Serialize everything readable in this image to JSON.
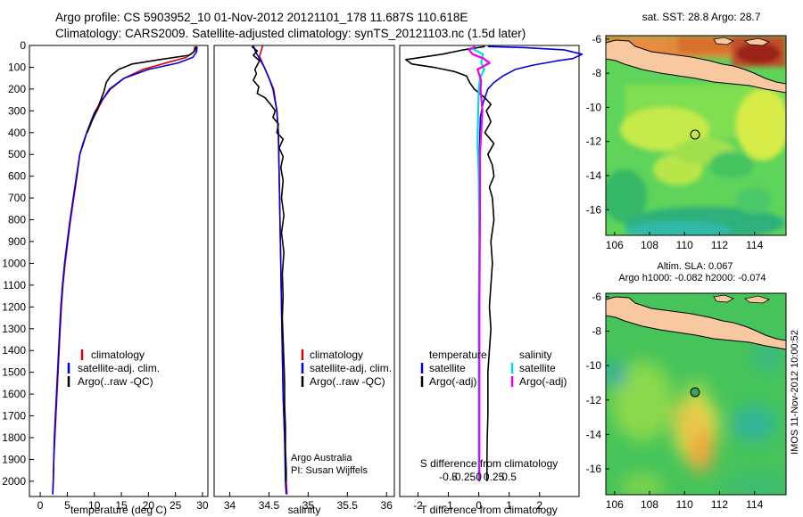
{
  "header": {
    "line1": "Argo profile: CS 5903952_10 01-Nov-2012 20121101_178 11.687S 110.618E",
    "line2": "Climatology: CARS2009. Satellite-adjusted climatology: synTS_20121103.nc (1.5d later)"
  },
  "colors": {
    "climatology": "#dd0000",
    "satellite": "#0000dd",
    "argo": "#000000",
    "salinity_sat": "#00dddd",
    "salinity_argo": "#ee00ee"
  },
  "chart_data": [
    {
      "type": "line",
      "panel": "temperature",
      "xlabel": "temperature (deg C)",
      "ylabel": "",
      "xlim": [
        -2,
        31
      ],
      "ylim": [
        2070,
        0
      ],
      "x_ticks": [
        0,
        5,
        10,
        15,
        20,
        25,
        30
      ],
      "y_ticks": [
        0,
        100,
        200,
        300,
        400,
        500,
        600,
        700,
        800,
        900,
        1000,
        1100,
        1200,
        1300,
        1400,
        1500,
        1600,
        1700,
        1800,
        1900,
        2000
      ],
      "legend": [
        "climatology",
        "satellite-adj. clim.",
        "Argo(..raw -QC)"
      ],
      "legend_position": "bottom-right",
      "series": [
        {
          "name": "climatology",
          "color": "#dd0000",
          "points": [
            [
              28.6,
              5
            ],
            [
              28.4,
              30
            ],
            [
              27,
              55
            ],
            [
              24,
              75
            ],
            [
              19,
              110
            ],
            [
              15.5,
              150
            ],
            [
              13,
              200
            ],
            [
              11.5,
              250
            ],
            [
              10.5,
              300
            ],
            [
              9.4,
              350
            ],
            [
              8.6,
              400
            ],
            [
              8,
              450
            ],
            [
              7.3,
              500
            ],
            [
              6.8,
              600
            ],
            [
              6.2,
              700
            ],
            [
              5.6,
              800
            ],
            [
              5.1,
              900
            ],
            [
              4.6,
              1000
            ],
            [
              4.2,
              1100
            ],
            [
              3.9,
              1200
            ],
            [
              3.7,
              1300
            ],
            [
              3.5,
              1400
            ],
            [
              3.3,
              1500
            ],
            [
              3.1,
              1600
            ],
            [
              2.9,
              1700
            ],
            [
              2.7,
              1800
            ],
            [
              2.5,
              1900
            ],
            [
              2.4,
              2000
            ],
            [
              2.3,
              2060
            ]
          ]
        },
        {
          "name": "satellite-adj. clim.",
          "color": "#0000dd",
          "points": [
            [
              29,
              5
            ],
            [
              28.9,
              30
            ],
            [
              28.2,
              55
            ],
            [
              25.5,
              80
            ],
            [
              20,
              110
            ],
            [
              15.5,
              150
            ],
            [
              12.8,
              200
            ],
            [
              11.2,
              260
            ],
            [
              10,
              310
            ],
            [
              9.2,
              360
            ],
            [
              8.6,
              400
            ],
            [
              7.9,
              450
            ],
            [
              7.3,
              500
            ],
            [
              6.7,
              600
            ],
            [
              6.1,
              700
            ],
            [
              5.5,
              800
            ],
            [
              5,
              900
            ],
            [
              4.5,
              1000
            ],
            [
              4.1,
              1100
            ],
            [
              3.8,
              1200
            ],
            [
              3.6,
              1300
            ],
            [
              3.4,
              1400
            ],
            [
              3.2,
              1500
            ],
            [
              3,
              1600
            ],
            [
              2.8,
              1700
            ],
            [
              2.6,
              1800
            ],
            [
              2.5,
              1900
            ],
            [
              2.4,
              2000
            ],
            [
              2.3,
              2060
            ]
          ]
        },
        {
          "name": "Argo(..raw -QC)",
          "color": "#000000",
          "points": [
            [
              28.8,
              5
            ],
            [
              28.6,
              25
            ],
            [
              27.5,
              45
            ],
            [
              22,
              65
            ],
            [
              17,
              85
            ],
            [
              14.5,
              110
            ],
            [
              13,
              140
            ],
            [
              12.2,
              170
            ],
            [
              11.8,
              210
            ],
            [
              11.2,
              250
            ],
            [
              10.4,
              300
            ],
            [
              9.5,
              350
            ],
            [
              8.7,
              400
            ]
          ]
        }
      ]
    },
    {
      "type": "line",
      "panel": "salinity",
      "xlabel": "salinity",
      "ylabel": "",
      "xlim": [
        33.8,
        36.1
      ],
      "ylim": [
        2070,
        0
      ],
      "x_ticks": [
        34,
        34.5,
        35,
        35.5,
        36
      ],
      "legend": [
        "climatology",
        "satellite-adj. clim.",
        "Argo(..raw -QC)"
      ],
      "legend_position": "bottom-right",
      "annotations": [
        "Argo Australia",
        "PI: Susan Wijffels"
      ],
      "series": [
        {
          "name": "climatology",
          "color": "#dd0000",
          "points": [
            [
              34.42,
              0
            ],
            [
              34.38,
              50
            ],
            [
              34.44,
              100
            ],
            [
              34.5,
              150
            ],
            [
              34.56,
              200
            ],
            [
              34.6,
              300
            ],
            [
              34.62,
              400
            ],
            [
              34.63,
              600
            ],
            [
              34.64,
              800
            ],
            [
              34.65,
              1000
            ],
            [
              34.66,
              1200
            ],
            [
              34.67,
              1400
            ],
            [
              34.68,
              1600
            ],
            [
              34.7,
              1800
            ],
            [
              34.72,
              2000
            ],
            [
              34.73,
              2060
            ]
          ]
        },
        {
          "name": "satellite-adj. clim.",
          "color": "#0000dd",
          "points": [
            [
              34.3,
              0
            ],
            [
              34.33,
              30
            ],
            [
              34.38,
              60
            ],
            [
              34.44,
              100
            ],
            [
              34.5,
              150
            ],
            [
              34.55,
              200
            ],
            [
              34.6,
              300
            ],
            [
              34.62,
              400
            ],
            [
              34.63,
              600
            ],
            [
              34.64,
              800
            ],
            [
              34.65,
              1000
            ],
            [
              34.66,
              1200
            ],
            [
              34.67,
              1400
            ],
            [
              34.68,
              1600
            ],
            [
              34.7,
              1800
            ],
            [
              34.71,
              2000
            ],
            [
              34.72,
              2060
            ]
          ]
        },
        {
          "name": "Argo(..raw -QC)",
          "color": "#000000",
          "points": [
            [
              34.28,
              5
            ],
            [
              34.35,
              25
            ],
            [
              34.3,
              45
            ],
            [
              34.38,
              70
            ],
            [
              34.35,
              90
            ],
            [
              34.32,
              110
            ],
            [
              34.34,
              130
            ],
            [
              34.3,
              160
            ],
            [
              34.37,
              190
            ],
            [
              34.35,
              220
            ],
            [
              34.45,
              240
            ],
            [
              34.52,
              270
            ],
            [
              34.58,
              300
            ],
            [
              34.55,
              330
            ],
            [
              34.62,
              360
            ],
            [
              34.6,
              400
            ],
            [
              34.68,
              430
            ],
            [
              34.63,
              470
            ],
            [
              34.68,
              510
            ],
            [
              34.65,
              560
            ],
            [
              34.68,
              620
            ],
            [
              34.66,
              700
            ],
            [
              34.69,
              780
            ],
            [
              34.66,
              860
            ],
            [
              34.69,
              950
            ],
            [
              34.67,
              1050
            ],
            [
              34.68,
              1150
            ],
            [
              34.67,
              1250
            ],
            [
              34.68,
              1350
            ],
            [
              34.69,
              1450
            ],
            [
              34.7,
              1550
            ],
            [
              34.7,
              1650
            ],
            [
              34.71,
              1750
            ],
            [
              34.71,
              1850
            ],
            [
              34.72,
              1950
            ],
            [
              34.72,
              2000
            ]
          ]
        }
      ]
    },
    {
      "type": "line",
      "panel": "difference",
      "xlabel": "T difference from climatology",
      "x2label": "S difference from climatology",
      "ylabel": "",
      "xlim": [
        -2.6,
        3.3
      ],
      "ylim": [
        2070,
        0
      ],
      "x_ticks": [
        -2,
        -1,
        0,
        1,
        2
      ],
      "x2_ticks": [
        -0.5,
        -0.25,
        0,
        0.25,
        0.5
      ],
      "x2_tick_labels": [
        "-0.5",
        "-0.25",
        "0",
        "0.25",
        "0.5"
      ],
      "legend": [
        "temperature",
        "satellite",
        "Argo(-adj)",
        "salinity",
        "satellite",
        "Argo(-adj)"
      ],
      "legend_position": "bottom",
      "series": [
        {
          "name": "T satellite",
          "color": "#0000dd",
          "points": [
            [
              0.3,
              5
            ],
            [
              1.5,
              10
            ],
            [
              2.8,
              20
            ],
            [
              3.4,
              40
            ],
            [
              3.1,
              60
            ],
            [
              2.6,
              70
            ],
            [
              1.8,
              90
            ],
            [
              1.2,
              110
            ],
            [
              0.8,
              140
            ],
            [
              0.5,
              170
            ],
            [
              0.3,
              200
            ],
            [
              0.15,
              260
            ],
            [
              0.05,
              330
            ],
            [
              0.02,
              500
            ],
            [
              0.02,
              800
            ],
            [
              0.01,
              1200
            ],
            [
              0.01,
              1600
            ],
            [
              0.01,
              2000
            ]
          ]
        },
        {
          "name": "T Argo(-adj)",
          "color": "#000000",
          "points": [
            [
              0.2,
              5
            ],
            [
              -0.5,
              20
            ],
            [
              -1.2,
              40
            ],
            [
              -2.4,
              65
            ],
            [
              -2.2,
              85
            ],
            [
              -1.5,
              100
            ],
            [
              -0.8,
              120
            ],
            [
              -0.4,
              140
            ],
            [
              -0.3,
              170
            ],
            [
              -0.15,
              200
            ],
            [
              0.2,
              240
            ],
            [
              0.4,
              270
            ],
            [
              0.25,
              300
            ],
            [
              0.4,
              350
            ],
            [
              0.2,
              400
            ],
            [
              0.5,
              450
            ],
            [
              0.3,
              500
            ],
            [
              0.45,
              550
            ],
            [
              0.5,
              600
            ],
            [
              0.35,
              650
            ],
            [
              0.45,
              700
            ],
            [
              0.5,
              800
            ],
            [
              0.4,
              900
            ],
            [
              0.45,
              1000
            ],
            [
              0.4,
              1100
            ],
            [
              0.35,
              1200
            ],
            [
              0.4,
              1300
            ],
            [
              0.35,
              1400
            ],
            [
              0.3,
              1500
            ],
            [
              0.3,
              1600
            ],
            [
              0.3,
              1700
            ],
            [
              0.28,
              1800
            ],
            [
              0.27,
              1900
            ],
            [
              0.27,
              2000
            ]
          ]
        },
        {
          "name": "S satellite",
          "color": "#00dddd",
          "points": [
            [
              -0.14,
              10
            ],
            [
              0.07,
              40
            ],
            [
              0.04,
              80
            ],
            [
              0.09,
              110
            ],
            [
              0.02,
              150
            ],
            [
              0,
              200
            ],
            [
              -0.01,
              300
            ],
            [
              -0.02,
              450
            ],
            [
              0,
              600
            ],
            [
              0.01,
              900
            ],
            [
              0,
              1200
            ],
            [
              0,
              1500
            ],
            [
              0,
              1800
            ],
            [
              0,
              2000
            ]
          ]
        },
        {
          "name": "S Argo(-adj)",
          "color": "#ee00ee",
          "points": [
            [
              -0.06,
              5
            ],
            [
              -0.16,
              20
            ],
            [
              -0.1,
              40
            ],
            [
              0.08,
              60
            ],
            [
              0.18,
              80
            ],
            [
              -0.02,
              110
            ],
            [
              0.04,
              160
            ],
            [
              0.03,
              200
            ],
            [
              0.06,
              300
            ],
            [
              0.02,
              500
            ],
            [
              0.02,
              800
            ],
            [
              0.01,
              1200
            ],
            [
              0.01,
              1600
            ],
            [
              0.01,
              2000
            ]
          ]
        }
      ]
    }
  ],
  "maps": [
    {
      "title": "sat. SST: 28.8  Argo: 28.7",
      "lon_ticks": [
        106,
        108,
        110,
        112,
        114
      ],
      "lat_ticks": [
        -6,
        -8,
        -10,
        -12,
        -14,
        -16
      ],
      "lon_range": [
        105.5,
        115.8
      ],
      "lat_range": [
        -17.5,
        -5.8
      ],
      "profile_location": [
        110.618,
        -11.687
      ]
    },
    {
      "title1": "Altim. SLA: 0.067",
      "title2": "Argo h1000: -0.082  h2000: -0.074",
      "lon_ticks": [
        106,
        108,
        110,
        112,
        114
      ],
      "lat_ticks": [
        -6,
        -8,
        -10,
        -12,
        -14,
        -16
      ],
      "lon_range": [
        105.5,
        115.8
      ],
      "lat_range": [
        -17.5,
        -5.8
      ],
      "profile_location": [
        110.618,
        -11.687
      ]
    }
  ],
  "footer": {
    "stamp": "IMOS 11-Nov-2012 10:00:52"
  }
}
